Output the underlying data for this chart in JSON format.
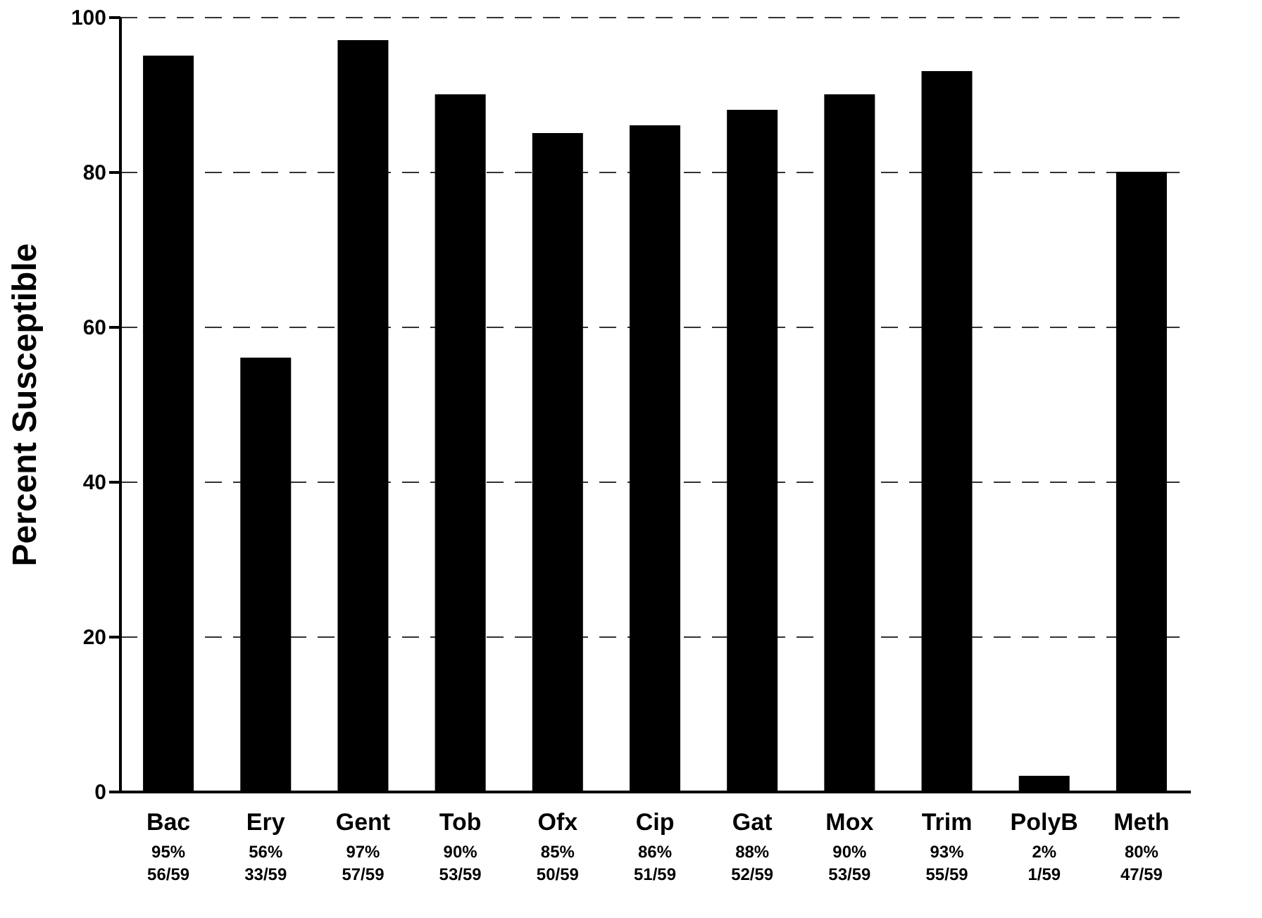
{
  "chart_data": {
    "type": "bar",
    "ylabel": "Percent Susceptible",
    "categories": [
      "Bac",
      "Ery",
      "Gent",
      "Tob",
      "Ofx",
      "Cip",
      "Gat",
      "Mox",
      "Trim",
      "PolyB",
      "Meth"
    ],
    "values": [
      95,
      56,
      97,
      90,
      85,
      86,
      88,
      90,
      93,
      2,
      80
    ],
    "value_labels": [
      "95%\n56/59",
      "56%\n33/59",
      "97%\n57/59",
      "90%\n53/59",
      "85%\n50/59",
      "86%\n51/59",
      "88%\n52/59",
      "90%\n53/59",
      "93%\n55/59",
      "2%\n1/59",
      "80%\n47/59"
    ],
    "color": "#000000",
    "ylim": [
      0,
      100
    ],
    "yticks": [
      0,
      20,
      40,
      60,
      80,
      100
    ],
    "grid": "y"
  }
}
